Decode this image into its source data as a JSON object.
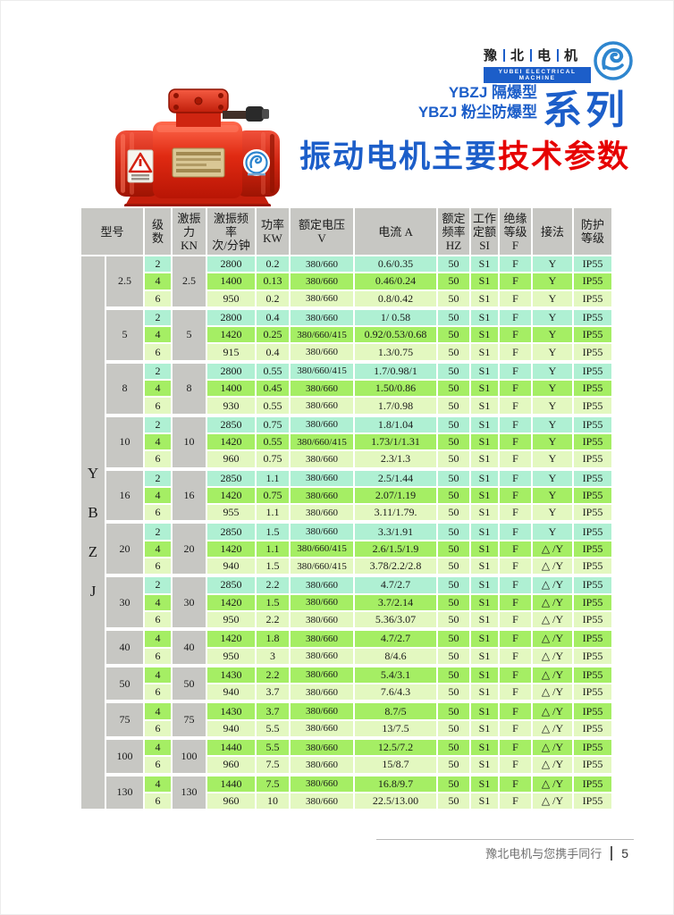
{
  "brand": {
    "logo_cn_chars": [
      "豫",
      "北",
      "电",
      "机"
    ],
    "logo_en": "YUBEI ELECTRICAL MACHINE",
    "series_line1": "YBZJ 隔爆型",
    "series_line2": "YBZJ 粉尘防爆型",
    "series_label": "系列",
    "title_blue": "振动电机主要",
    "title_red": "技术参数"
  },
  "colors": {
    "blue": "#1c5ec9",
    "red": "#e60000",
    "header_gray": "#c7c7c3",
    "pole2": "#aff0d3",
    "pole4": "#a5ee64",
    "pole6": "#e3f8c0"
  },
  "table": {
    "model_letters": "Y\nB\nZ\nJ",
    "headers": [
      "型号",
      "级\n数",
      "激振\n力\nKN",
      "激振频率\n次/分钟",
      "功率\nKW",
      "额定电压\nV",
      "电流 A",
      "额定\n频率\nHZ",
      "工作\n定额\nSI",
      "绝缘\n等级\nF",
      "接法",
      "防护\n等级"
    ],
    "common": {
      "freq_hz": "50",
      "duty": "S1",
      "insulation": "F",
      "protection": "IP55"
    },
    "groups": [
      {
        "model": "2.5",
        "force": "2.5",
        "rows": [
          {
            "poles": "2",
            "rpm": "2800",
            "kw": "0.2",
            "volt": "380/660",
            "amp": "0.6/0.35",
            "conn": "Y"
          },
          {
            "poles": "4",
            "rpm": "1400",
            "kw": "0.13",
            "volt": "380/660",
            "amp": "0.46/0.24",
            "conn": "Y"
          },
          {
            "poles": "6",
            "rpm": "950",
            "kw": "0.2",
            "volt": "380/660",
            "amp": "0.8/0.42",
            "conn": "Y"
          }
        ]
      },
      {
        "model": "5",
        "force": "5",
        "rows": [
          {
            "poles": "2",
            "rpm": "2800",
            "kw": "0.4",
            "volt": "380/660",
            "amp": "1/ 0.58",
            "conn": "Y"
          },
          {
            "poles": "4",
            "rpm": "1420",
            "kw": "0.25",
            "volt": "380/660/415",
            "amp": "0.92/0.53/0.68",
            "conn": "Y"
          },
          {
            "poles": "6",
            "rpm": "915",
            "kw": "0.4",
            "volt": "380/660",
            "amp": "1.3/0.75",
            "conn": "Y"
          }
        ]
      },
      {
        "model": "8",
        "force": "8",
        "rows": [
          {
            "poles": "2",
            "rpm": "2800",
            "kw": "0.55",
            "volt": "380/660/415",
            "amp": "1.7/0.98/1",
            "conn": "Y"
          },
          {
            "poles": "4",
            "rpm": "1400",
            "kw": "0.45",
            "volt": "380/660",
            "amp": "1.50/0.86",
            "conn": "Y"
          },
          {
            "poles": "6",
            "rpm": "930",
            "kw": "0.55",
            "volt": "380/660",
            "amp": "1.7/0.98",
            "conn": "Y"
          }
        ]
      },
      {
        "model": "10",
        "force": "10",
        "rows": [
          {
            "poles": "2",
            "rpm": "2850",
            "kw": "0.75",
            "volt": "380/660",
            "amp": "1.8/1.04",
            "conn": "Y"
          },
          {
            "poles": "4",
            "rpm": "1420",
            "kw": "0.55",
            "volt": "380/660/415",
            "amp": "1.73/1/1.31",
            "conn": "Y"
          },
          {
            "poles": "6",
            "rpm": "960",
            "kw": "0.75",
            "volt": "380/660",
            "amp": "2.3/1.3",
            "conn": "Y"
          }
        ]
      },
      {
        "model": "16",
        "force": "16",
        "rows": [
          {
            "poles": "2",
            "rpm": "2850",
            "kw": "1.1",
            "volt": "380/660",
            "amp": "2.5/1.44",
            "conn": "Y"
          },
          {
            "poles": "4",
            "rpm": "1420",
            "kw": "0.75",
            "volt": "380/660",
            "amp": "2.07/1.19",
            "conn": "Y"
          },
          {
            "poles": "6",
            "rpm": "955",
            "kw": "1.1",
            "volt": "380/660",
            "amp": "3.11/1.79.",
            "conn": "Y"
          }
        ]
      },
      {
        "model": "20",
        "force": "20",
        "rows": [
          {
            "poles": "2",
            "rpm": "2850",
            "kw": "1.5",
            "volt": "380/660",
            "amp": "3.3/1.91",
            "conn": "Y"
          },
          {
            "poles": "4",
            "rpm": "1420",
            "kw": "1.1",
            "volt": "380/660/415",
            "amp": "2.6/1.5/1.9",
            "conn": "△ /Y"
          },
          {
            "poles": "6",
            "rpm": "940",
            "kw": "1.5",
            "volt": "380/660/415",
            "amp": "3.78/2.2/2.8",
            "conn": "△ /Y"
          }
        ]
      },
      {
        "model": "30",
        "force": "30",
        "rows": [
          {
            "poles": "2",
            "rpm": "2850",
            "kw": "2.2",
            "volt": "380/660",
            "amp": "4.7/2.7",
            "conn": "△ /Y"
          },
          {
            "poles": "4",
            "rpm": "1420",
            "kw": "1.5",
            "volt": "380/660",
            "amp": "3.7/2.14",
            "conn": "△ /Y"
          },
          {
            "poles": "6",
            "rpm": "950",
            "kw": "2.2",
            "volt": "380/660",
            "amp": "5.36/3.07",
            "conn": "△ /Y"
          }
        ]
      },
      {
        "model": "40",
        "force": "40",
        "rows": [
          {
            "poles": "4",
            "rpm": "1420",
            "kw": "1.8",
            "volt": "380/660",
            "amp": "4.7/2.7",
            "conn": "△ /Y"
          },
          {
            "poles": "6",
            "rpm": "950",
            "kw": "3",
            "volt": "380/660",
            "amp": "8/4.6",
            "conn": "△ /Y"
          }
        ]
      },
      {
        "model": "50",
        "force": "50",
        "rows": [
          {
            "poles": "4",
            "rpm": "1430",
            "kw": "2.2",
            "volt": "380/660",
            "amp": "5.4/3.1",
            "conn": "△ /Y"
          },
          {
            "poles": "6",
            "rpm": "940",
            "kw": "3.7",
            "volt": "380/660",
            "amp": "7.6/4.3",
            "conn": "△ /Y"
          }
        ]
      },
      {
        "model": "75",
        "force": "75",
        "rows": [
          {
            "poles": "4",
            "rpm": "1430",
            "kw": "3.7",
            "volt": "380/660",
            "amp": "8.7/5",
            "conn": "△ /Y"
          },
          {
            "poles": "6",
            "rpm": "940",
            "kw": "5.5",
            "volt": "380/660",
            "amp": "13/7.5",
            "conn": "△ /Y"
          }
        ]
      },
      {
        "model": "100",
        "force": "100",
        "rows": [
          {
            "poles": "4",
            "rpm": "1440",
            "kw": "5.5",
            "volt": "380/660",
            "amp": "12.5/7.2",
            "conn": "△ /Y"
          },
          {
            "poles": "6",
            "rpm": "960",
            "kw": "7.5",
            "volt": "380/660",
            "amp": "15/8.7",
            "conn": "△ /Y"
          }
        ]
      },
      {
        "model": "130",
        "force": "130",
        "rows": [
          {
            "poles": "4",
            "rpm": "1440",
            "kw": "7.5",
            "volt": "380/660",
            "amp": "16.8/9.7",
            "conn": "△ /Y"
          },
          {
            "poles": "6",
            "rpm": "960",
            "kw": "10",
            "volt": "380/660",
            "amp": "22.5/13.00",
            "conn": "△ /Y"
          }
        ]
      }
    ]
  },
  "footer": {
    "slogan": "豫北电机与您携手同行",
    "page": "5"
  }
}
